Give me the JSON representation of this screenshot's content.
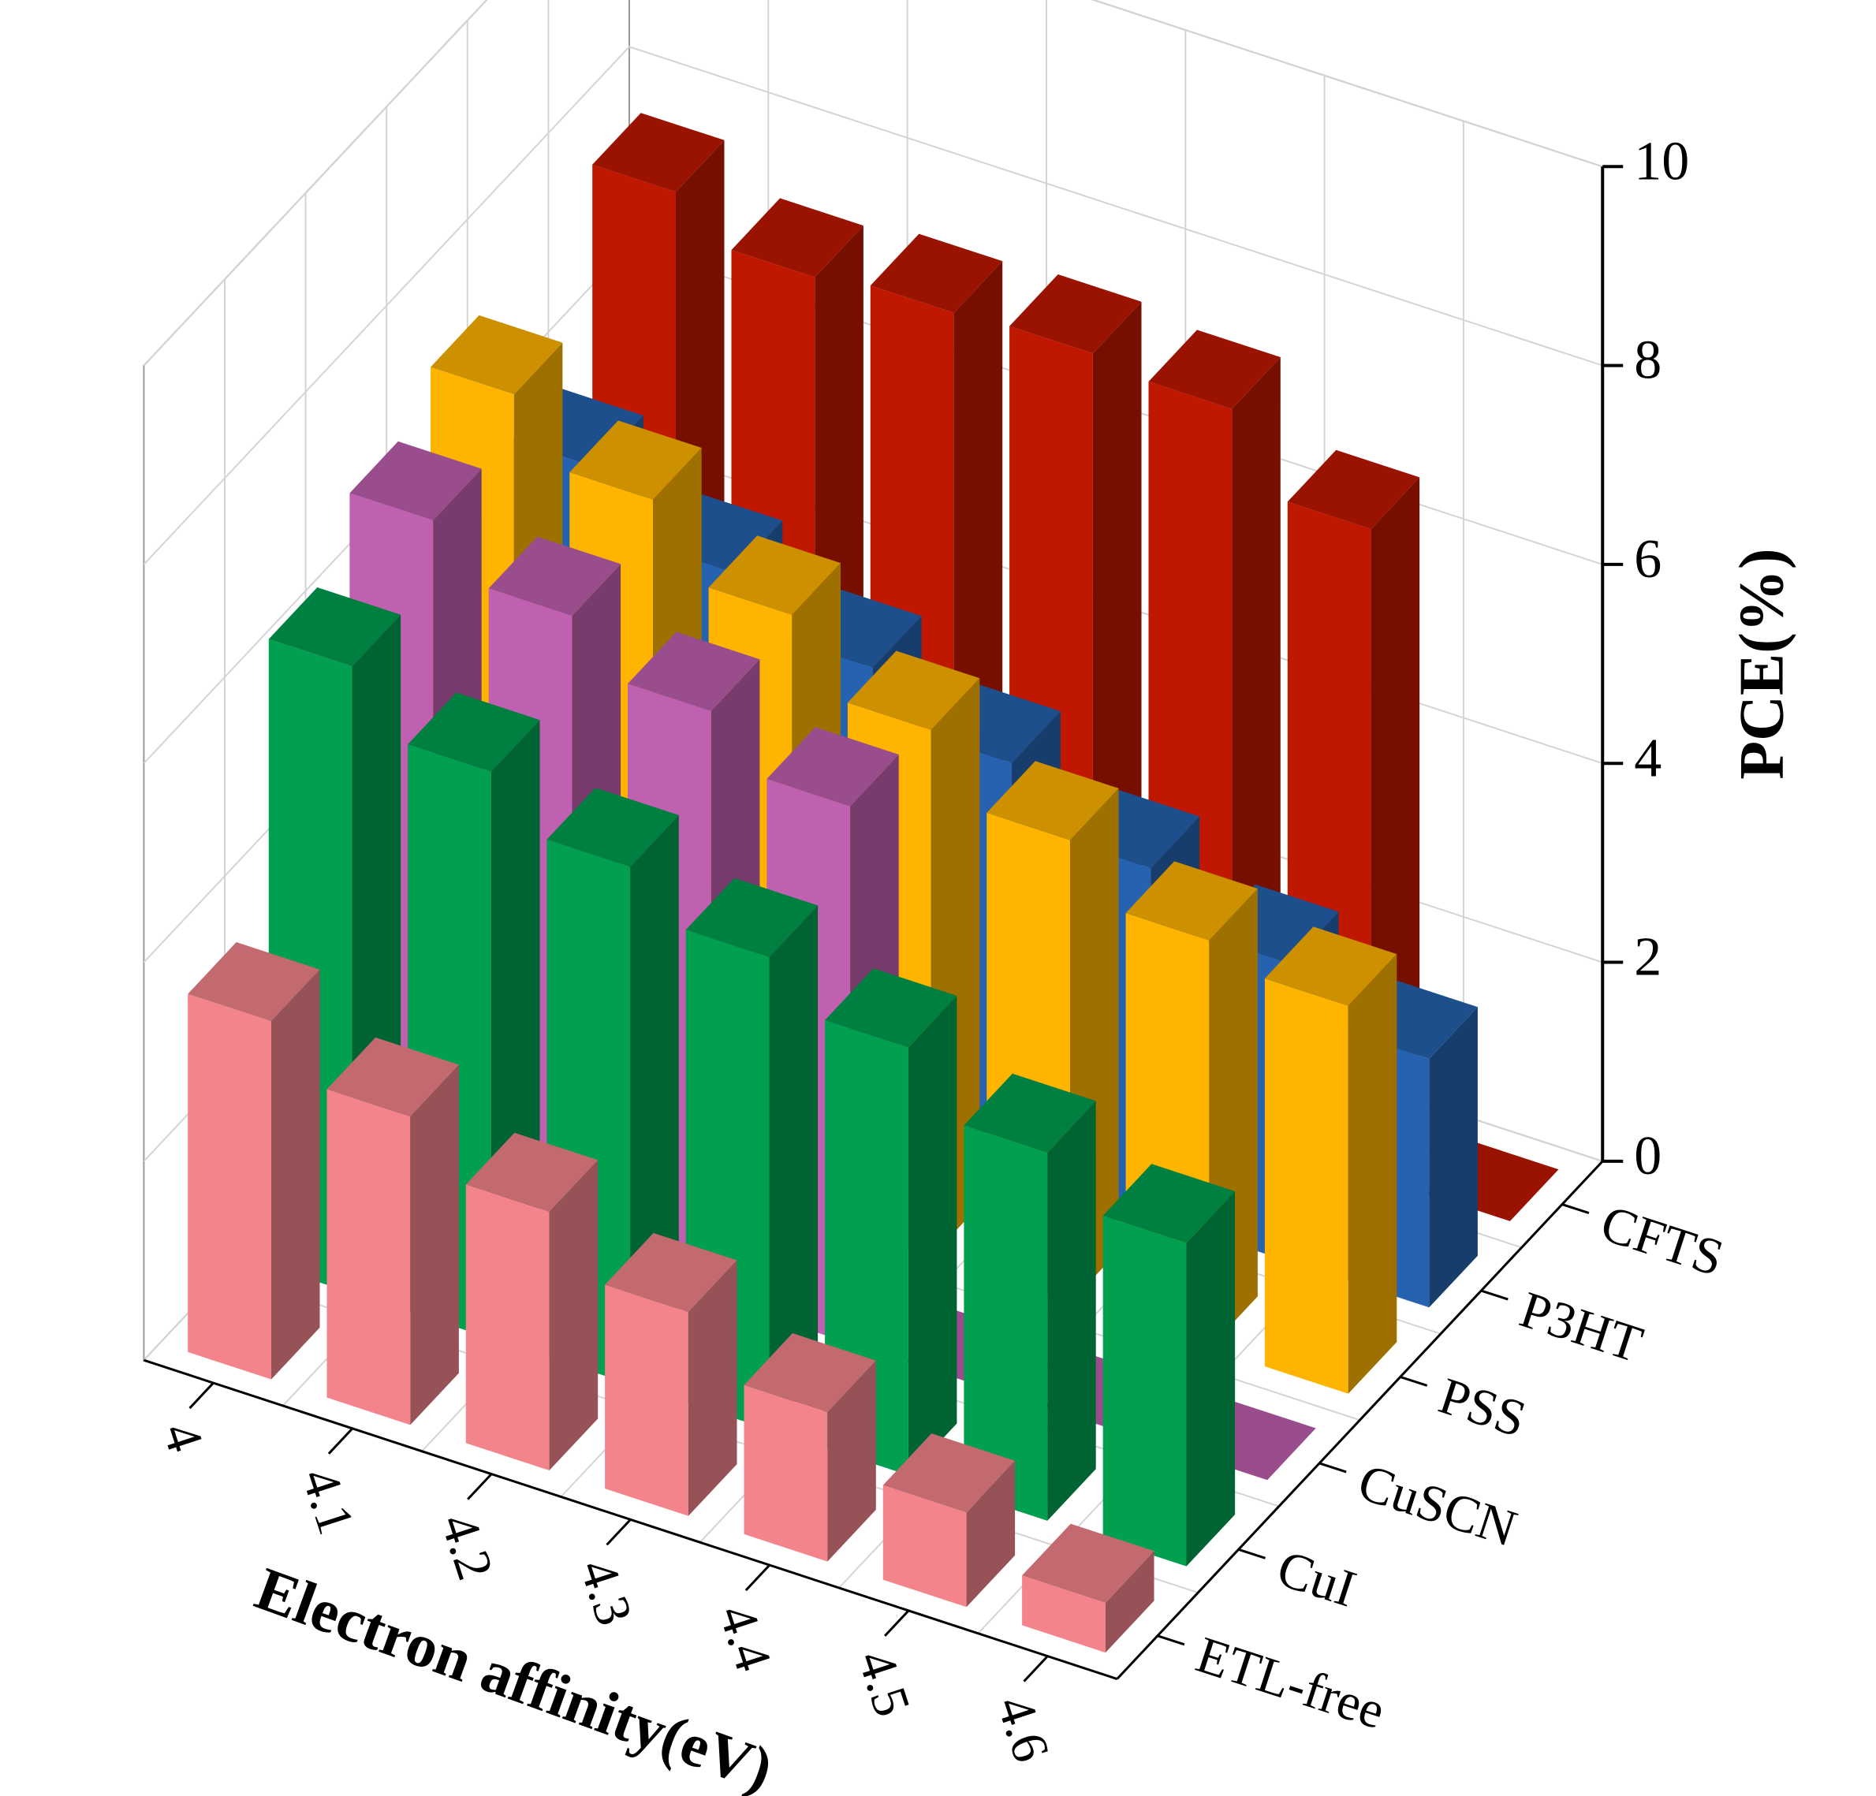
{
  "chart_data": {
    "type": "bar3d",
    "x_label": "Electron affinity(eV)",
    "y_label": "PCE(%)",
    "categories": [
      "4",
      "4.1",
      "4.2",
      "4.3",
      "4.4",
      "4.5",
      "4.6"
    ],
    "series": [
      {
        "name": "CFTS",
        "color": "#c01800",
        "values": [
          7.6,
          7.2,
          7.3,
          7.35,
          7.25,
          6.5,
          0
        ]
      },
      {
        "name": "P3HT",
        "color": "#2563b0",
        "values": [
          5.7,
          5.1,
          4.6,
          4.1,
          3.5,
          3.0,
          2.5
        ]
      },
      {
        "name": "PSS",
        "color": "#ffb400",
        "values": [
          7.3,
          6.7,
          6.0,
          5.3,
          4.65,
          4.1,
          3.9
        ]
      },
      {
        "name": "CuSCN",
        "color": "#c060b0",
        "values": [
          6.9,
          6.4,
          5.9,
          5.4,
          0,
          0,
          0
        ]
      },
      {
        "name": "CuI",
        "color": "#00a050",
        "values": [
          6.3,
          5.7,
          5.2,
          4.75,
          4.3,
          3.7,
          3.25
        ]
      },
      {
        "name": "ETL-free",
        "color": "#f4848c",
        "values": [
          3.6,
          3.1,
          2.6,
          2.05,
          1.5,
          0.95,
          0.5
        ]
      }
    ],
    "ylim": [
      0,
      10
    ],
    "yticks": [
      0,
      2,
      4,
      6,
      8,
      10
    ],
    "grid": true
  }
}
